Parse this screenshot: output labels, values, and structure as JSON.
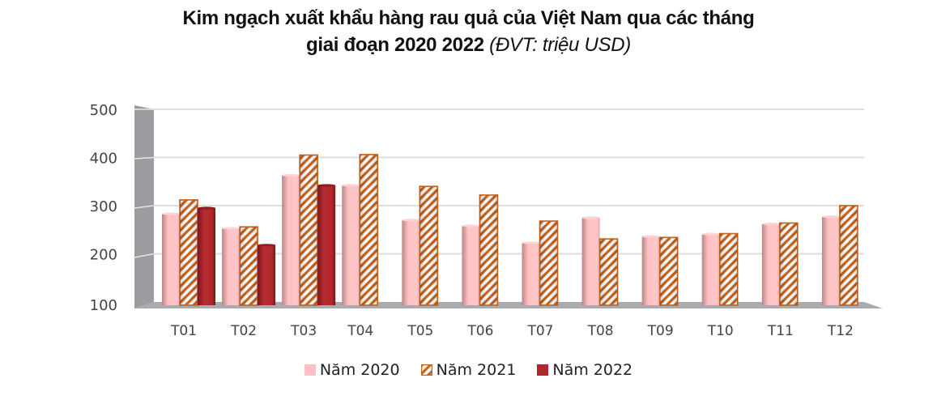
{
  "title": {
    "line1": "Kim ngạch xuất khẩu hàng rau quả của Việt Nam qua các tháng",
    "line2": "giai đoạn 2020 2022",
    "unit": "(ĐVT: triệu USD)"
  },
  "colors": {
    "y2020": "#ffc2c4",
    "y2020_shade": "#b98789",
    "y2021_stripe": "#c8641e",
    "y2021_bg": "#ffffff",
    "y2022": "#b0282d",
    "y2022_shade": "#7a1519",
    "wall": "#9a9ca0",
    "floor": "#a9abae",
    "grid": "#dedede"
  },
  "legend": [
    {
      "label": "Năm 2020",
      "key": "y2020"
    },
    {
      "label": "Năm 2021",
      "key": "y2021"
    },
    {
      "label": "Năm 2022",
      "key": "y2022"
    }
  ],
  "chart_data": {
    "type": "bar",
    "title": "Kim ngạch xuất khẩu hàng rau quả của Việt Nam qua các tháng giai đoạn 2020 2022 (ĐVT: triệu USD)",
    "xlabel": "",
    "ylabel": "",
    "ylim": [
      100,
      500
    ],
    "yticks": [
      100,
      200,
      300,
      400,
      500
    ],
    "grid": true,
    "legend_position": "bottom",
    "style": "3d-cylinder",
    "categories": [
      "T01",
      "T02",
      "T03",
      "T04",
      "T05",
      "T06",
      "T07",
      "T08",
      "T09",
      "T10",
      "T11",
      "T12"
    ],
    "series": [
      {
        "name": "Năm 2020",
        "values": [
          283,
          253,
          363,
          342,
          270,
          258,
          223,
          275,
          236,
          241,
          262,
          277
        ]
      },
      {
        "name": "Năm 2021",
        "values": [
          312,
          256,
          405,
          406,
          340,
          322,
          268,
          231,
          234,
          242,
          264,
          300
        ]
      },
      {
        "name": "Năm 2022",
        "values": [
          295,
          218,
          342,
          null,
          null,
          null,
          null,
          null,
          null,
          null,
          null,
          null
        ]
      }
    ]
  }
}
